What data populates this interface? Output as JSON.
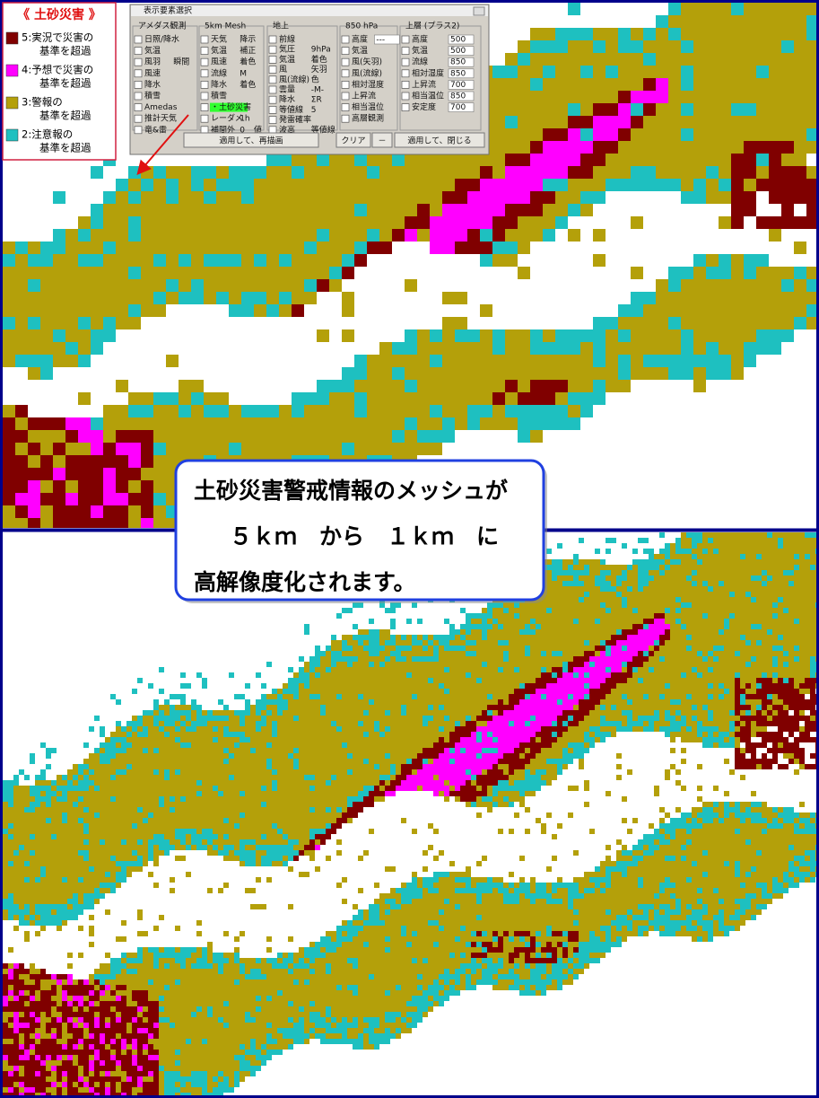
{
  "legend": {
    "title": "《 土砂災害 》",
    "items": [
      {
        "lines": [
          "5:実況で災害の",
          "基準を超過"
        ],
        "color": "#800000"
      },
      {
        "lines": [
          "4:予想で災害の",
          "基準を超過"
        ],
        "color": "#ff00ff"
      },
      {
        "lines": [
          "3:警報の",
          "基準を超過"
        ],
        "color": "#b4a00a"
      },
      {
        "lines": [
          "2:注意報の",
          "基準を超過"
        ],
        "color": "#1ec0c0"
      }
    ]
  },
  "dialog": {
    "title": "表示要素選択",
    "columns": [
      {
        "header": "アメダス観測",
        "rows": [
          [
            "日照/降水"
          ],
          [
            "気温"
          ],
          [
            "風羽",
            "瞬間"
          ],
          [
            "風速"
          ],
          [
            "降水"
          ],
          [
            "積雪"
          ],
          [
            "Amedas"
          ],
          [
            "推計天気"
          ],
          [
            "竜&雷"
          ]
        ]
      },
      {
        "header": "5km Mesh",
        "rows": [
          [
            "天気",
            "降示"
          ],
          [
            "気温",
            "補正"
          ],
          [
            "風速",
            "着色"
          ],
          [
            "流線",
            "M"
          ],
          [
            "降水",
            "着色"
          ],
          [
            "積雪"
          ],
          [
            "・土砂災害"
          ],
          [
            "レーダメ",
            "1h"
          ],
          [
            "補間外",
            "0",
            "値"
          ]
        ]
      },
      {
        "header": "地上",
        "rows": [
          [
            "前線"
          ],
          [
            "気圧",
            "9hPa"
          ],
          [
            "気温",
            "着色"
          ],
          [
            "風",
            "矢羽"
          ],
          [
            "風(流線)",
            "色"
          ],
          [
            "雲量",
            "-M-"
          ],
          [
            "降水",
            "ΣR"
          ],
          [
            "等値線",
            "5"
          ],
          [
            "発雷確率"
          ],
          [
            "波高",
            "等値線"
          ]
        ]
      },
      {
        "header": "850 hPa",
        "rows": [
          [
            "高度",
            "---"
          ],
          [
            "気温"
          ],
          [
            "風(矢羽)"
          ],
          [
            "風(流線)"
          ],
          [
            "相対湿度"
          ],
          [
            "上昇流"
          ],
          [
            "相当温位"
          ],
          [
            "高層観測"
          ]
        ]
      },
      {
        "header": "上層 (プラス2)",
        "rows": [
          [
            "高度",
            "500"
          ],
          [
            "気温",
            "500"
          ],
          [
            "流線",
            "850"
          ],
          [
            "相対湿度",
            "850"
          ],
          [
            "上昇流",
            "700"
          ],
          [
            "相当温位",
            "850"
          ],
          [
            "安定度",
            "700"
          ]
        ]
      }
    ],
    "buttons": [
      "適用して、再描画",
      "クリア",
      "－",
      "適用して、閉じる"
    ]
  },
  "callout": {
    "lines": [
      "土砂災害警戒情報のメッシュが",
      "５ｋｍ　から　１ｋｍ　に",
      "高解像度化されます。"
    ]
  }
}
